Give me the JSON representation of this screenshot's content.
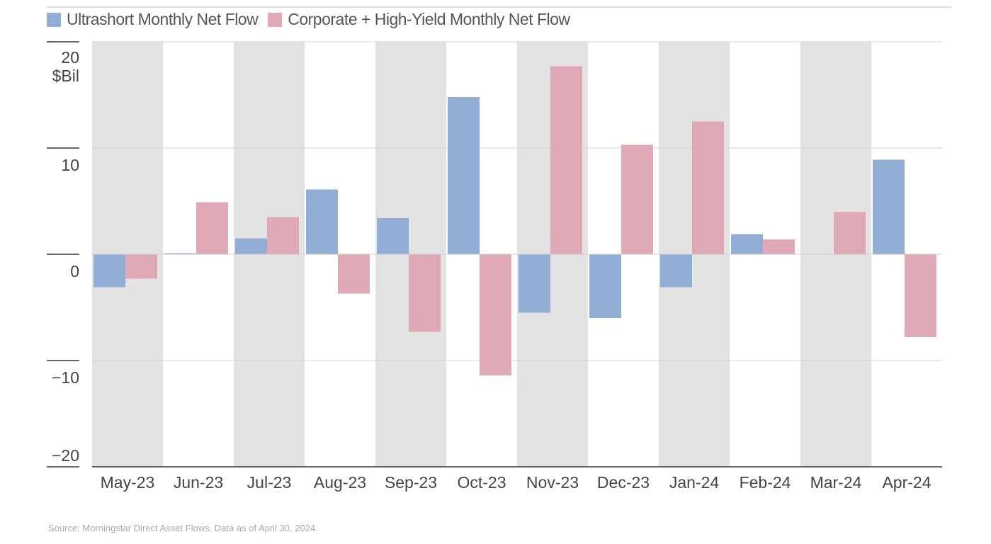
{
  "chart_data": {
    "type": "bar",
    "categories": [
      "May-23",
      "Jun-23",
      "Jul-23",
      "Aug-23",
      "Sep-23",
      "Oct-23",
      "Nov-23",
      "Dec-23",
      "Jan-24",
      "Feb-24",
      "Mar-24",
      "Apr-24"
    ],
    "series": [
      {
        "name": "Ultrashort Monthly Net Flow",
        "color": "#93AED5",
        "values": [
          -3.1,
          0.1,
          1.5,
          6.1,
          3.4,
          14.8,
          -5.5,
          -6.0,
          -3.1,
          1.9,
          0,
          8.9
        ]
      },
      {
        "name": "Corporate + High-Yield Monthly Net Flow",
        "color": "#DFA9B8",
        "values": [
          -2.3,
          4.9,
          3.5,
          -3.7,
          -7.3,
          -11.4,
          17.7,
          10.3,
          12.5,
          1.4,
          4.0,
          -7.8
        ]
      }
    ],
    "ylabel": "$Bil",
    "ylim": [
      -20,
      20
    ],
    "yticks": [
      20,
      10,
      0,
      -10,
      -20
    ],
    "ytick_labels": [
      "20",
      "10",
      "0",
      "−10",
      "−20"
    ],
    "grid": true,
    "legend": "top-left",
    "band_color": "#E3E3E3",
    "source": "Source: Morningstar Direct Asset Flows. Data as of April 30, 2024."
  }
}
